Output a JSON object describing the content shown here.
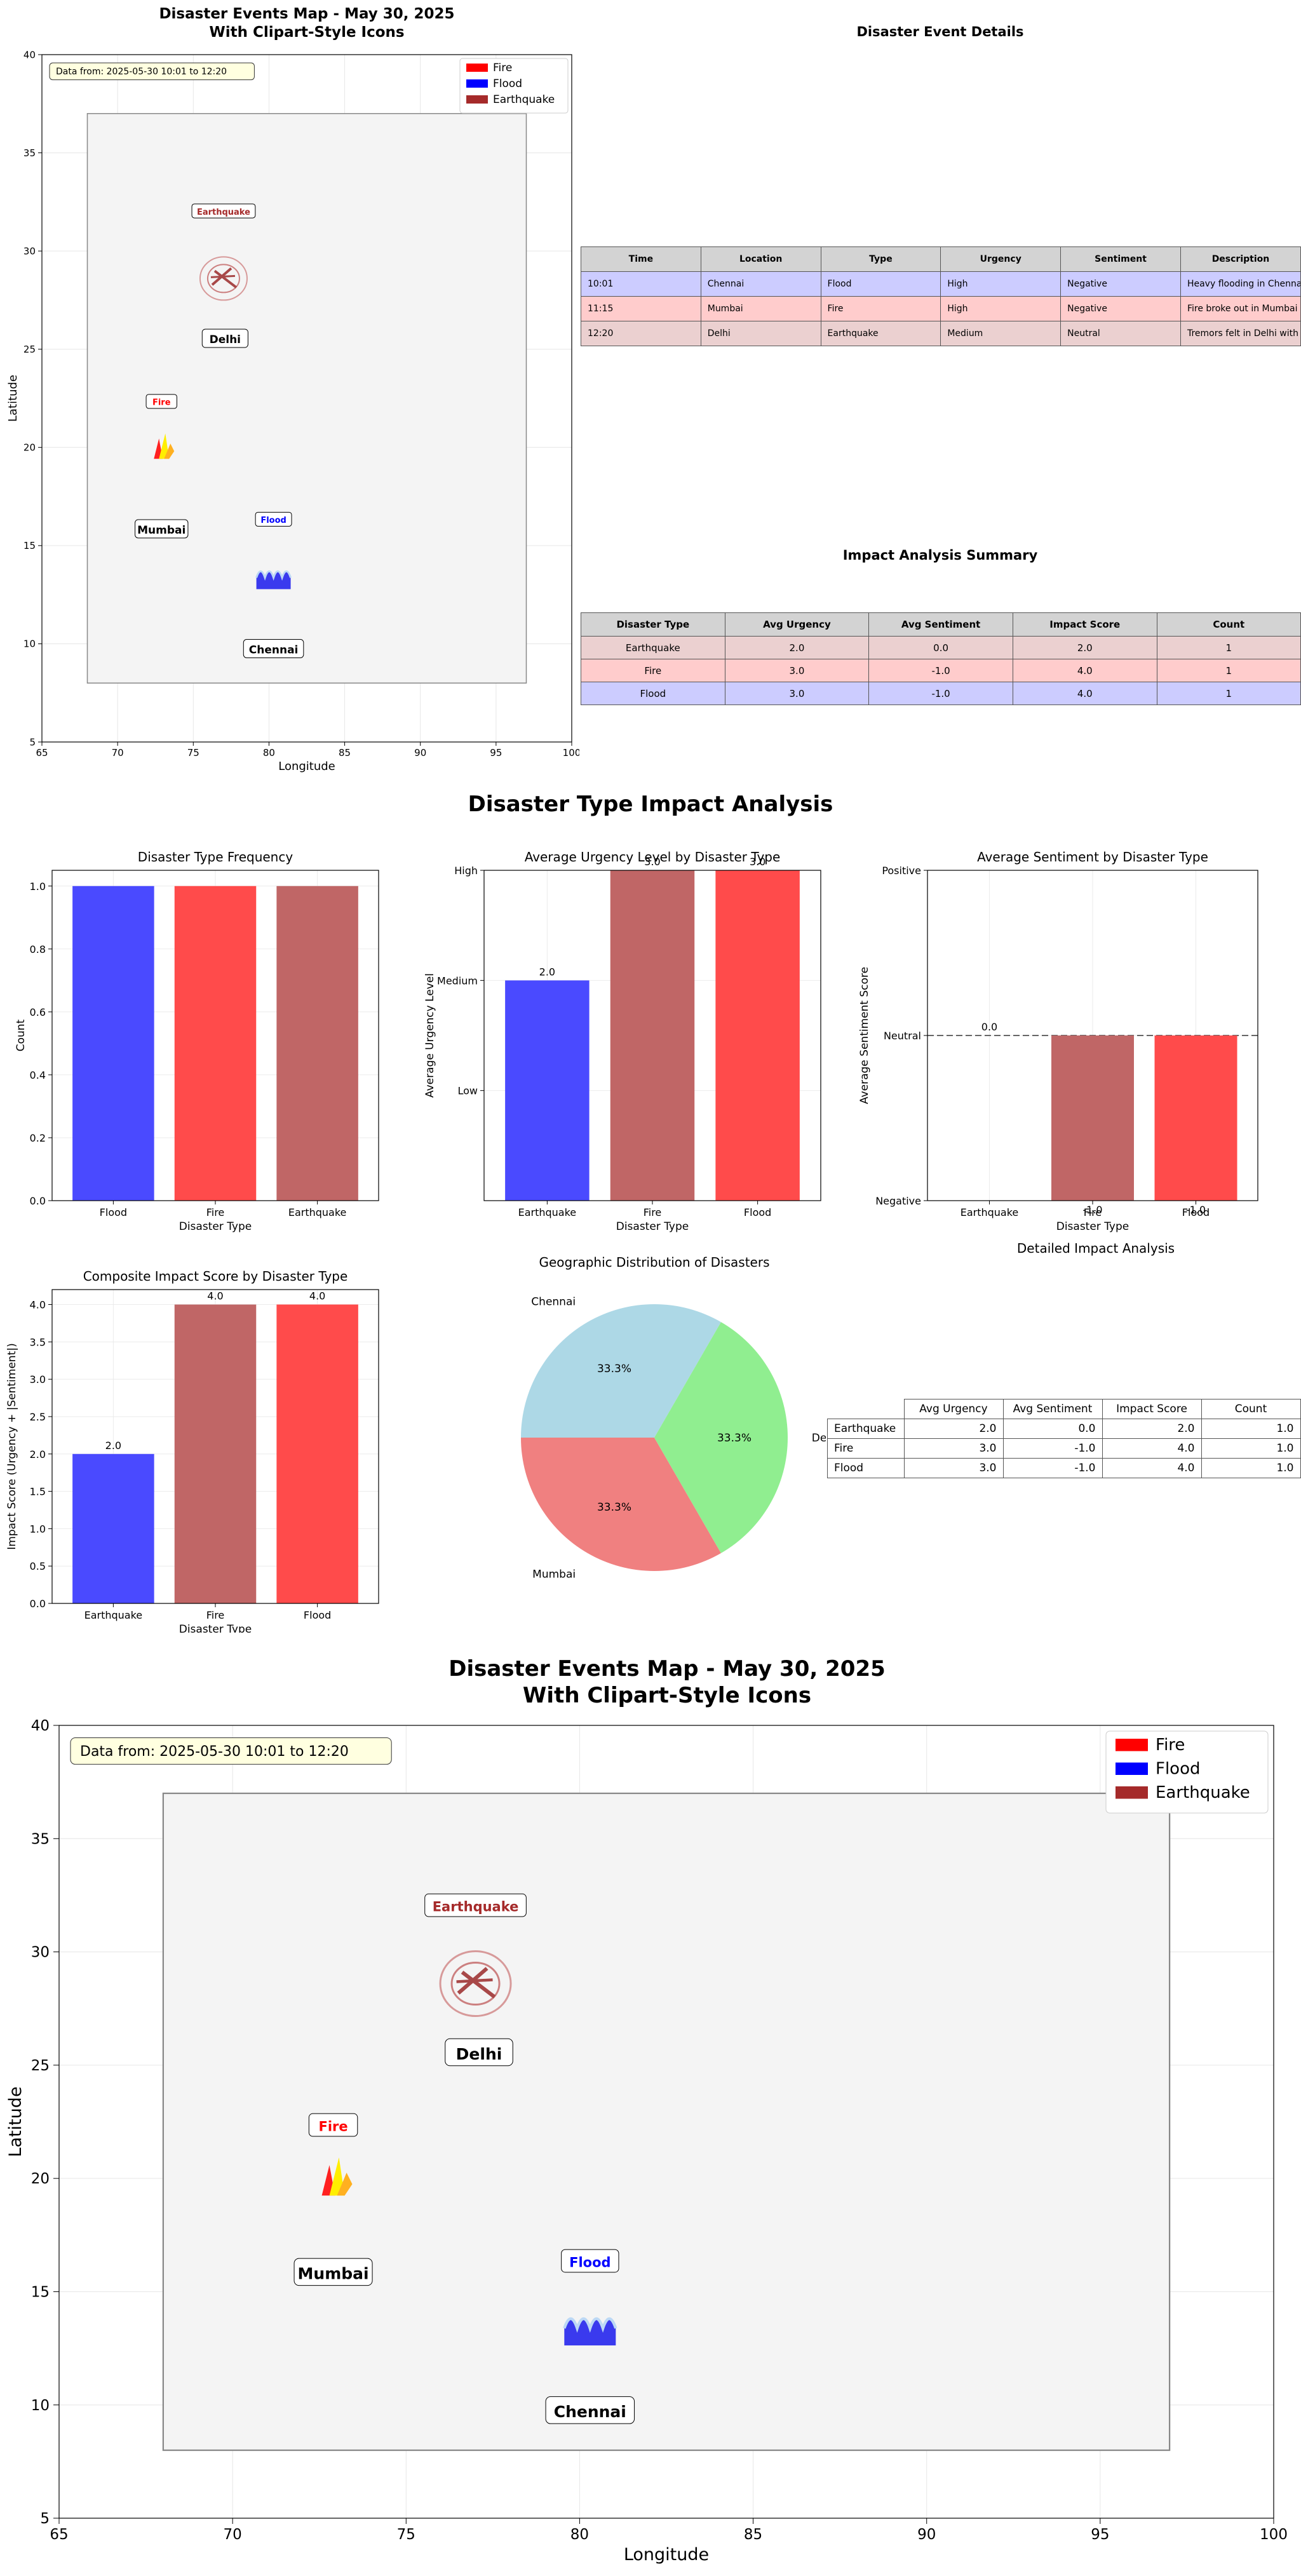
{
  "colors": {
    "fire": "#ff4b4b",
    "flood": "#4a4aff",
    "earthquake": "#c06666",
    "legend_fire": "#ff0000",
    "legend_flood": "#0000ff",
    "legend_earthquake": "#a52a2a",
    "row_flood": "#ccccff",
    "row_fire": "#ffcccc",
    "row_earthquake": "#ebd0d0",
    "pie_chennai": "#add8e6",
    "pie_mumbai": "#f08080",
    "pie_delhi": "#90ee90"
  },
  "map": {
    "title": "Disaster Events Map - May 30, 2025\nWith Clipart-Style Icons",
    "date_note": "Data from: 2025-05-30 10:01 to 12:20",
    "xlabel": "Longitude",
    "ylabel": "Latitude",
    "xlim": [
      65,
      100
    ],
    "ylim": [
      5,
      40
    ],
    "xticks": [
      "65",
      "70",
      "75",
      "80",
      "85",
      "90",
      "95",
      "100"
    ],
    "yticks": [
      "5",
      "10",
      "15",
      "20",
      "25",
      "30",
      "35",
      "40"
    ],
    "region": {
      "lon": [
        68,
        97
      ],
      "lat": [
        8,
        37
      ]
    },
    "legend": [
      {
        "label": "Fire",
        "type": "fire"
      },
      {
        "label": "Flood",
        "type": "flood"
      },
      {
        "label": "Earthquake",
        "type": "earthquake"
      }
    ],
    "cities": [
      {
        "name": "Delhi",
        "lon": 77.1,
        "lat": 25.5
      },
      {
        "name": "Mumbai",
        "lon": 72.9,
        "lat": 15.8
      },
      {
        "name": "Chennai",
        "lon": 80.3,
        "lat": 9.7
      }
    ],
    "events": [
      {
        "type": "earthquake",
        "label": "Earthquake",
        "lon": 77.0,
        "lat": 28.6,
        "label_lat": 32.0
      },
      {
        "type": "fire",
        "label": "Fire",
        "lon": 72.9,
        "lat": 20.0,
        "label_lat": 22.3
      },
      {
        "type": "flood",
        "label": "Flood",
        "lon": 80.3,
        "lat": 13.3,
        "label_lat": 16.3
      }
    ]
  },
  "details": {
    "title": "Disaster Event Details",
    "headers": [
      "Time",
      "Location",
      "Type",
      "Urgency",
      "Sentiment",
      "Description"
    ],
    "rows": [
      {
        "type": "flood",
        "cells": [
          "10:01",
          "Chennai",
          "Flood",
          "High",
          "Negative",
          "Heavy flooding in Chennai"
        ]
      },
      {
        "type": "fire",
        "cells": [
          "11:15",
          "Mumbai",
          "Fire",
          "High",
          "Negative",
          "Fire broke out in Mumbai in"
        ]
      },
      {
        "type": "earthquake",
        "cells": [
          "12:20",
          "Delhi",
          "Earthquake",
          "Medium",
          "Neutral",
          "Tremors felt in Delhi with m"
        ]
      }
    ]
  },
  "summary": {
    "title": "Impact Analysis Summary",
    "headers": [
      "Disaster Type",
      "Avg Urgency",
      "Avg Sentiment",
      "Impact Score",
      "Count"
    ],
    "rows": [
      {
        "type": "earthquake",
        "cells": [
          "Earthquake",
          "2.0",
          "0.0",
          "2.0",
          "1"
        ]
      },
      {
        "type": "fire",
        "cells": [
          "Fire",
          "3.0",
          "-1.0",
          "4.0",
          "1"
        ]
      },
      {
        "type": "flood",
        "cells": [
          "Flood",
          "3.0",
          "-1.0",
          "4.0",
          "1"
        ]
      }
    ]
  },
  "analysis_title": "Disaster Type Impact Analysis",
  "chart_data": [
    {
      "type": "bar",
      "title": "Disaster Type Frequency",
      "xlabel": "Disaster Type",
      "ylabel": "Count",
      "categories": [
        "Flood",
        "Fire",
        "Earthquake"
      ],
      "values": [
        1,
        1,
        1
      ],
      "colors": [
        "flood",
        "fire",
        "earthquake"
      ],
      "ylim": [
        0,
        1.05
      ],
      "yticks": [
        0.0,
        0.2,
        0.4,
        0.6,
        0.8,
        1.0
      ],
      "ytick_labels": [
        "0.0",
        "0.2",
        "0.4",
        "0.6",
        "0.8",
        "1.0"
      ],
      "value_labels": []
    },
    {
      "type": "bar",
      "title": "Average Urgency Level by Disaster Type",
      "xlabel": "Disaster Type",
      "ylabel": "Average Urgency Level",
      "categories": [
        "Earthquake",
        "Fire",
        "Flood"
      ],
      "values": [
        2.0,
        3.0,
        3.0
      ],
      "colors": [
        "flood",
        "earthquake",
        "fire"
      ],
      "ylim": [
        0,
        3.0
      ],
      "yticks": [
        1,
        2,
        3
      ],
      "ytick_labels": [
        "Low",
        "Medium",
        "High"
      ],
      "value_labels": [
        "2.0",
        "3.0",
        "3.0"
      ]
    },
    {
      "type": "bar",
      "title": "Average Sentiment by Disaster Type",
      "xlabel": "Disaster Type",
      "ylabel": "Average Sentiment Score",
      "categories": [
        "Earthquake",
        "Fire",
        "Flood"
      ],
      "values": [
        0.0,
        -1.0,
        -1.0
      ],
      "colors": [
        "flood",
        "earthquake",
        "fire"
      ],
      "ylim": [
        -1.0,
        1.0
      ],
      "yticks": [
        -1,
        0,
        1
      ],
      "ytick_labels": [
        "Negative",
        "Neutral",
        "Positive"
      ],
      "value_labels": [
        "0.0",
        "-1.0",
        "-1.0"
      ],
      "reference_line": 0
    },
    {
      "type": "bar",
      "title": "Composite Impact Score by Disaster Type",
      "xlabel": "Disaster Type",
      "ylabel": "Impact Score (Urgency + |Sentiment|)",
      "categories": [
        "Earthquake",
        "Fire",
        "Flood"
      ],
      "values": [
        2.0,
        4.0,
        4.0
      ],
      "colors": [
        "flood",
        "earthquake",
        "fire"
      ],
      "ylim": [
        0,
        4.2
      ],
      "yticks": [
        0.0,
        0.5,
        1.0,
        1.5,
        2.0,
        2.5,
        3.0,
        3.5,
        4.0
      ],
      "ytick_labels": [
        "0.0",
        "0.5",
        "1.0",
        "1.5",
        "2.0",
        "2.5",
        "3.0",
        "3.5",
        "4.0"
      ],
      "value_labels": [
        "2.0",
        "4.0",
        "4.0"
      ]
    },
    {
      "type": "pie",
      "title": "Geographic Distribution of Disasters",
      "categories": [
        "Chennai",
        "Mumbai",
        "Delhi"
      ],
      "values": [
        33.3,
        33.3,
        33.3
      ],
      "value_labels": [
        "33.3%",
        "33.3%",
        "33.3%"
      ],
      "colors": [
        "pie_chennai",
        "pie_mumbai",
        "pie_delhi"
      ]
    },
    {
      "type": "table",
      "title": "Detailed Impact Analysis",
      "headers": [
        "Avg Urgency",
        "Avg Sentiment",
        "Impact Score",
        "Count"
      ],
      "rows": [
        {
          "label": "Earthquake",
          "cells": [
            "2.0",
            "0.0",
            "2.0",
            "1.0"
          ]
        },
        {
          "label": "Fire",
          "cells": [
            "3.0",
            "-1.0",
            "4.0",
            "1.0"
          ]
        },
        {
          "label": "Flood",
          "cells": [
            "3.0",
            "-1.0",
            "4.0",
            "1.0"
          ]
        }
      ]
    }
  ]
}
